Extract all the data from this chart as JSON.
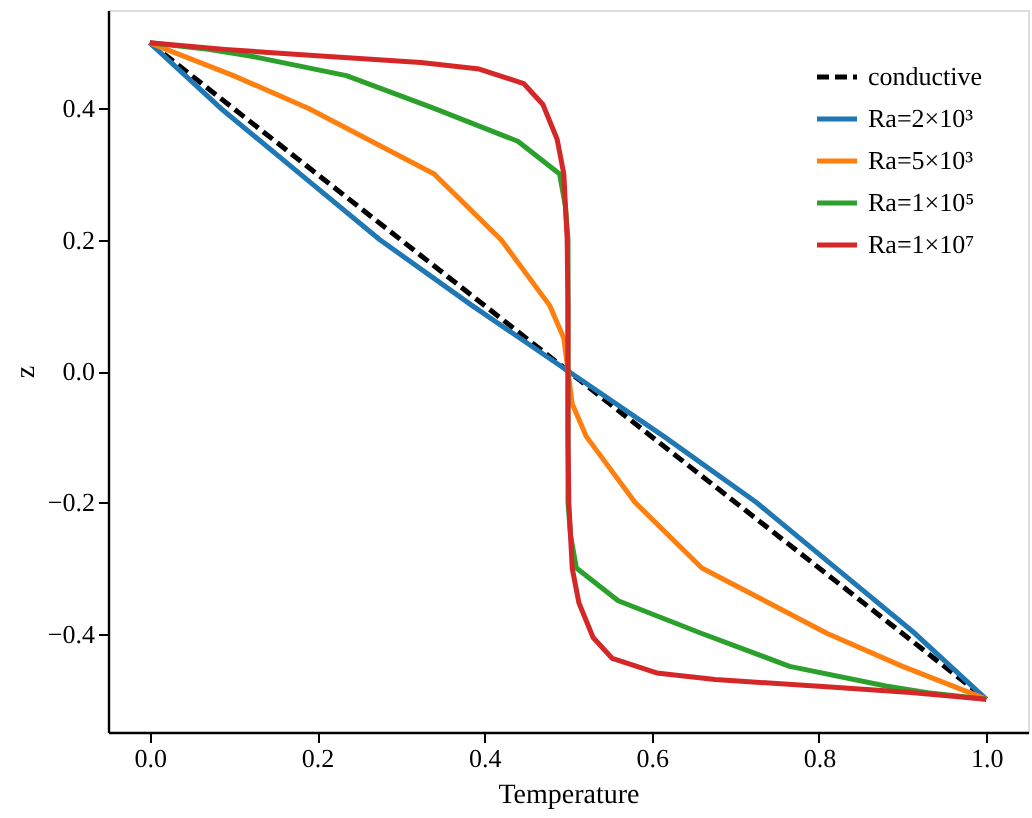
{
  "chart_data": {
    "type": "line",
    "xlabel": "Temperature",
    "ylabel": "z",
    "xlim": [
      -0.05,
      1.05
    ],
    "xticks": [
      {
        "value": 0,
        "label": "0.0"
      },
      0.2,
      0.4,
      0.6,
      0.8,
      {
        "value": 1,
        "label": "1.0"
      }
    ],
    "ylim": [
      -0.55,
      0.55
    ],
    "yticks": [
      -0.4,
      -0.2,
      {
        "value": 0,
        "label": "0.0"
      },
      0.2,
      0.4
    ],
    "grid": false,
    "legend": "top right",
    "marker": "none",
    "series": [
      {
        "name": "conductive",
        "color": "#000000",
        "line_style": "dashed",
        "x": [
          0,
          1
        ],
        "values": [
          0.5,
          -0.5
        ]
      },
      {
        "name": "Ra=2×10³",
        "color": "#1f77b4",
        "line_style": "solid",
        "x": [
          0,
          0.085,
          0.18,
          0.275,
          0.385,
          0.5,
          0.615,
          0.725,
          0.82,
          0.915,
          1
        ],
        "values": [
          0.5,
          0.4,
          0.3,
          0.2,
          0.1,
          0,
          -0.1,
          -0.2,
          -0.3,
          -0.4,
          -0.5
        ]
      },
      {
        "name": "Ra=5×10³",
        "color": "#ff7f0e",
        "line_style": "solid",
        "x": [
          0,
          0.1,
          0.19,
          0.34,
          0.42,
          0.478,
          0.495,
          0.5,
          0.505,
          0.522,
          0.58,
          0.66,
          0.81,
          0.9,
          1
        ],
        "values": [
          0.5,
          0.45,
          0.4,
          0.3,
          0.2,
          0.1,
          0.05,
          0,
          -0.05,
          -0.1,
          -0.2,
          -0.3,
          -0.4,
          -0.45,
          -0.5
        ]
      },
      {
        "name": "Ra=1×10⁵",
        "color": "#2ca02c",
        "line_style": "solid",
        "x": [
          0,
          0.07,
          0.12,
          0.235,
          0.34,
          0.44,
          0.49,
          0.497,
          0.5,
          0.5,
          0.5,
          0.503,
          0.51,
          0.56,
          0.66,
          0.765,
          0.88,
          0.93,
          1
        ],
        "values": [
          0.5,
          0.49,
          0.48,
          0.45,
          0.4,
          0.35,
          0.3,
          0.25,
          0.2,
          0,
          -0.2,
          -0.25,
          -0.3,
          -0.35,
          -0.4,
          -0.45,
          -0.48,
          -0.49,
          -0.5
        ]
      },
      {
        "name": "Ra=1×10⁷",
        "color": "#d62728",
        "line_style": "solid",
        "x": [
          0,
          0.09,
          0.191,
          0.324,
          0.394,
          0.447,
          0.47,
          0.487,
          0.495,
          0.499,
          0.5,
          0.5,
          0.5,
          0.501,
          0.505,
          0.513,
          0.53,
          0.553,
          0.606,
          0.676,
          0.809,
          0.91,
          1
        ],
        "values": [
          0.5,
          0.49,
          0.481,
          0.47,
          0.46,
          0.438,
          0.406,
          0.353,
          0.3,
          0.2,
          0.1,
          0,
          -0.1,
          -0.2,
          -0.3,
          -0.353,
          -0.406,
          -0.438,
          -0.46,
          -0.47,
          -0.481,
          -0.49,
          -0.5
        ]
      }
    ]
  }
}
